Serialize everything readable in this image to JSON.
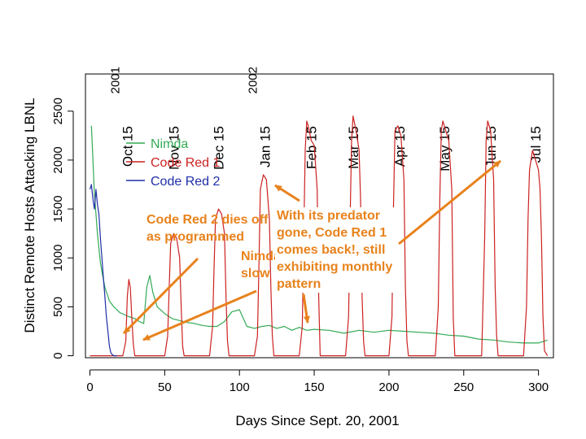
{
  "chart_data": {
    "type": "line",
    "title": "",
    "xlabel": "Days Since Sept. 20, 2001",
    "ylabel": "Distinct Remote Hosts Attacking LBNL",
    "xlim": [
      -3,
      310
    ],
    "ylim": [
      -20,
      2880
    ],
    "xticks": [
      0,
      50,
      100,
      150,
      200,
      250,
      300
    ],
    "yticks": [
      0,
      500,
      1000,
      1500,
      2000,
      2500
    ],
    "grid": false,
    "legend": {
      "position": "top-left",
      "entries": [
        {
          "name": "Nimda",
          "color": "#33aa55"
        },
        {
          "name": "Code Red 1",
          "color": "#cc2222"
        },
        {
          "name": "Code Red 2",
          "color": "#1f2fa8"
        }
      ]
    },
    "month_markers": [
      {
        "label": "Oct 15",
        "day": 25
      },
      {
        "label": "Nov 15",
        "day": 56
      },
      {
        "label": "Dec 15",
        "day": 86
      },
      {
        "label": "Jan 15",
        "day": 117
      },
      {
        "label": "Feb 15",
        "day": 148
      },
      {
        "label": "Mar 15",
        "day": 176
      },
      {
        "label": "Apr 15",
        "day": 207
      },
      {
        "label": "May 15",
        "day": 237
      },
      {
        "label": "Jun 15",
        "day": 268
      },
      {
        "label": "Jul 15",
        "day": 298
      }
    ],
    "year_markers": [
      {
        "label": "2001",
        "day": 25
      },
      {
        "label": "2002",
        "day": 117
      }
    ],
    "series": [
      {
        "name": "Nimda",
        "color": "#33aa55",
        "x": [
          1,
          2,
          3,
          4,
          5,
          6,
          7,
          8,
          9,
          10,
          11,
          12,
          13,
          14,
          16,
          18,
          20,
          23,
          26,
          30,
          33,
          36,
          38,
          40,
          42,
          45,
          50,
          55,
          60,
          65,
          70,
          75,
          80,
          85,
          90,
          95,
          100,
          105,
          110,
          115,
          120,
          125,
          130,
          135,
          140,
          145,
          150,
          160,
          170,
          180,
          190,
          200,
          210,
          220,
          230,
          240,
          250,
          260,
          270,
          280,
          290,
          300,
          306
        ],
        "y": [
          2350,
          2000,
          1650,
          1450,
          1250,
          1100,
          950,
          860,
          780,
          700,
          650,
          610,
          560,
          540,
          500,
          470,
          440,
          420,
          400,
          380,
          350,
          330,
          700,
          820,
          650,
          500,
          430,
          380,
          360,
          340,
          330,
          310,
          300,
          300,
          350,
          450,
          470,
          300,
          280,
          300,
          310,
          280,
          300,
          260,
          290,
          260,
          270,
          260,
          230,
          260,
          240,
          260,
          250,
          240,
          230,
          210,
          200,
          170,
          160,
          140,
          130,
          130,
          160
        ]
      },
      {
        "name": "Code Red 1",
        "color": "#cc2222",
        "x": [
          0,
          22,
          24,
          25,
          26,
          27,
          28,
          29,
          30,
          31,
          32,
          50,
          52,
          53,
          54,
          56,
          58,
          60,
          61,
          62,
          63,
          80,
          82,
          83,
          84,
          86,
          88,
          90,
          91,
          92,
          93,
          110,
          112,
          113,
          114,
          116,
          118,
          120,
          121,
          122,
          123,
          140,
          142,
          143,
          144,
          145,
          146,
          148,
          150,
          152,
          153,
          154,
          171,
          173,
          174,
          175,
          176,
          178,
          180,
          181,
          182,
          183,
          184,
          200,
          202,
          203,
          204,
          206,
          208,
          210,
          211,
          212,
          213,
          231,
          233,
          234,
          235,
          236,
          238,
          240,
          242,
          243,
          244,
          262,
          264,
          265,
          266,
          268,
          270,
          271,
          272,
          273,
          290,
          292,
          293,
          294,
          296,
          298,
          300,
          301,
          302,
          303,
          304,
          306
        ],
        "y": [
          0,
          0,
          150,
          600,
          780,
          700,
          400,
          120,
          0,
          0,
          0,
          0,
          200,
          700,
          1150,
          1250,
          1200,
          1000,
          500,
          100,
          0,
          0,
          300,
          900,
          1400,
          1500,
          1450,
          1250,
          600,
          150,
          0,
          0,
          200,
          900,
          1700,
          1850,
          1800,
          1400,
          700,
          200,
          0,
          0,
          300,
          1200,
          2100,
          2400,
          2350,
          2200,
          2150,
          1700,
          600,
          0,
          0,
          400,
          1400,
          2200,
          2450,
          2300,
          2100,
          1600,
          600,
          150,
          0,
          0,
          400,
          1500,
          2300,
          2350,
          2250,
          1800,
          700,
          150,
          0,
          0,
          500,
          1600,
          2300,
          2400,
          2300,
          2200,
          1700,
          400,
          0,
          0,
          1200,
          2200,
          2400,
          2300,
          1800,
          700,
          200,
          0,
          0,
          500,
          1400,
          1900,
          2100,
          2000,
          1900,
          1700,
          1200,
          400,
          50,
          0
        ]
      },
      {
        "name": "Code Red 2",
        "color": "#1f2fa8",
        "x": [
          0,
          1,
          2,
          3,
          4,
          5,
          6,
          7,
          8,
          9,
          10,
          11,
          12,
          13,
          14,
          15,
          16,
          17,
          18
        ],
        "y": [
          1700,
          1750,
          1600,
          1500,
          1700,
          1550,
          1450,
          1200,
          1000,
          800,
          600,
          400,
          250,
          100,
          30,
          10,
          0,
          0,
          0
        ]
      }
    ]
  },
  "annotations": {
    "cr2_dies": "Code Red 2 dies off\nas programmed",
    "nimda_slow": "Nimda's\nslow",
    "cr1_back": "With its predator\ngone, Code Red 1\ncomes back!, still\nexhibiting monthly\npattern"
  }
}
